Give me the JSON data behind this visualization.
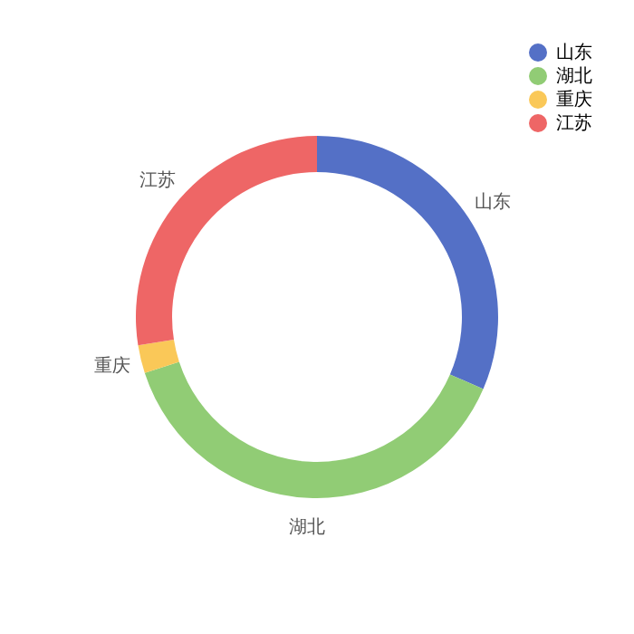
{
  "chart_data": {
    "type": "donut",
    "categories": [
      "山东",
      "湖北",
      "重庆",
      "江苏"
    ],
    "values": [
      31.5,
      38.5,
      2.5,
      27.5
    ],
    "colors": [
      "#5470c6",
      "#91cc75",
      "#fac858",
      "#ee6666"
    ],
    "legend": "top right"
  }
}
